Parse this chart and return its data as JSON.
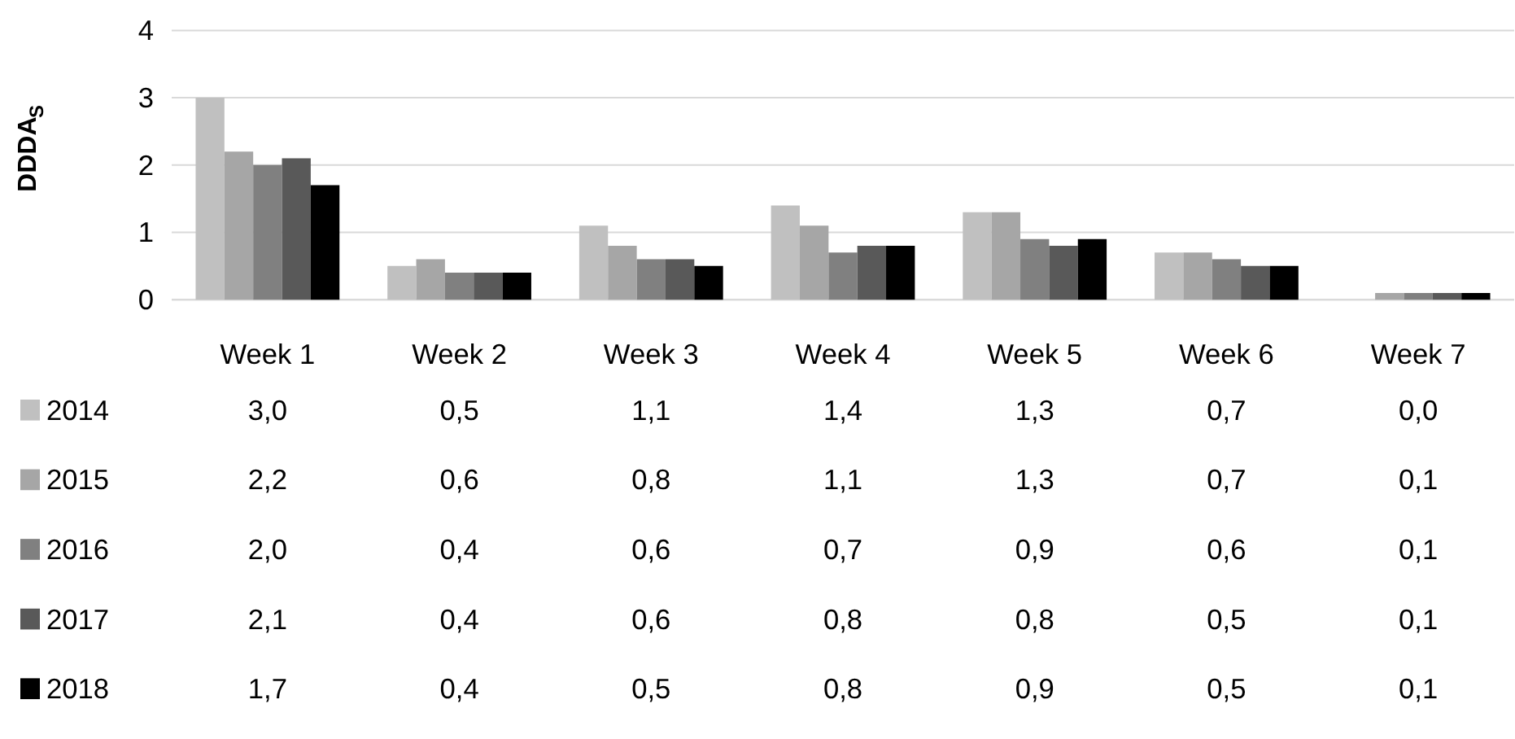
{
  "chart_data": {
    "type": "bar",
    "ylabel": "DDDA$_{S}$",
    "categories": [
      "Week 1",
      "Week 2",
      "Week 3",
      "Week 4",
      "Week 5",
      "Week 6",
      "Week 7"
    ],
    "series": [
      {
        "name": "2014",
        "color": "#c0c0c0",
        "values": [
          3.0,
          0.5,
          1.1,
          1.4,
          1.3,
          0.7,
          0.0
        ],
        "value_labels": [
          "3,0",
          "0,5",
          "1,1",
          "1,4",
          "1,3",
          "0,7",
          "0,0"
        ]
      },
      {
        "name": "2015",
        "color": "#a6a6a6",
        "values": [
          2.2,
          0.6,
          0.8,
          1.1,
          1.3,
          0.7,
          0.1
        ],
        "value_labels": [
          "2,2",
          "0,6",
          "0,8",
          "1,1",
          "1,3",
          "0,7",
          "0,1"
        ]
      },
      {
        "name": "2016",
        "color": "#808080",
        "values": [
          2.0,
          0.4,
          0.6,
          0.7,
          0.9,
          0.6,
          0.1
        ],
        "value_labels": [
          "2,0",
          "0,4",
          "0,6",
          "0,7",
          "0,9",
          "0,6",
          "0,1"
        ]
      },
      {
        "name": "2017",
        "color": "#595959",
        "values": [
          2.1,
          0.4,
          0.6,
          0.8,
          0.8,
          0.5,
          0.1
        ],
        "value_labels": [
          "2,1",
          "0,4",
          "0,6",
          "0,8",
          "0,8",
          "0,5",
          "0,1"
        ]
      },
      {
        "name": "2018",
        "color": "#000000",
        "values": [
          1.7,
          0.4,
          0.5,
          0.8,
          0.9,
          0.5,
          0.1
        ],
        "value_labels": [
          "1,7",
          "0,4",
          "0,5",
          "0,8",
          "0,9",
          "0,5",
          "0,1"
        ]
      }
    ],
    "ylim": [
      0,
      4
    ],
    "yticks": [
      0,
      1,
      2,
      3,
      4
    ],
    "grid": "y",
    "legend": "bottom"
  }
}
